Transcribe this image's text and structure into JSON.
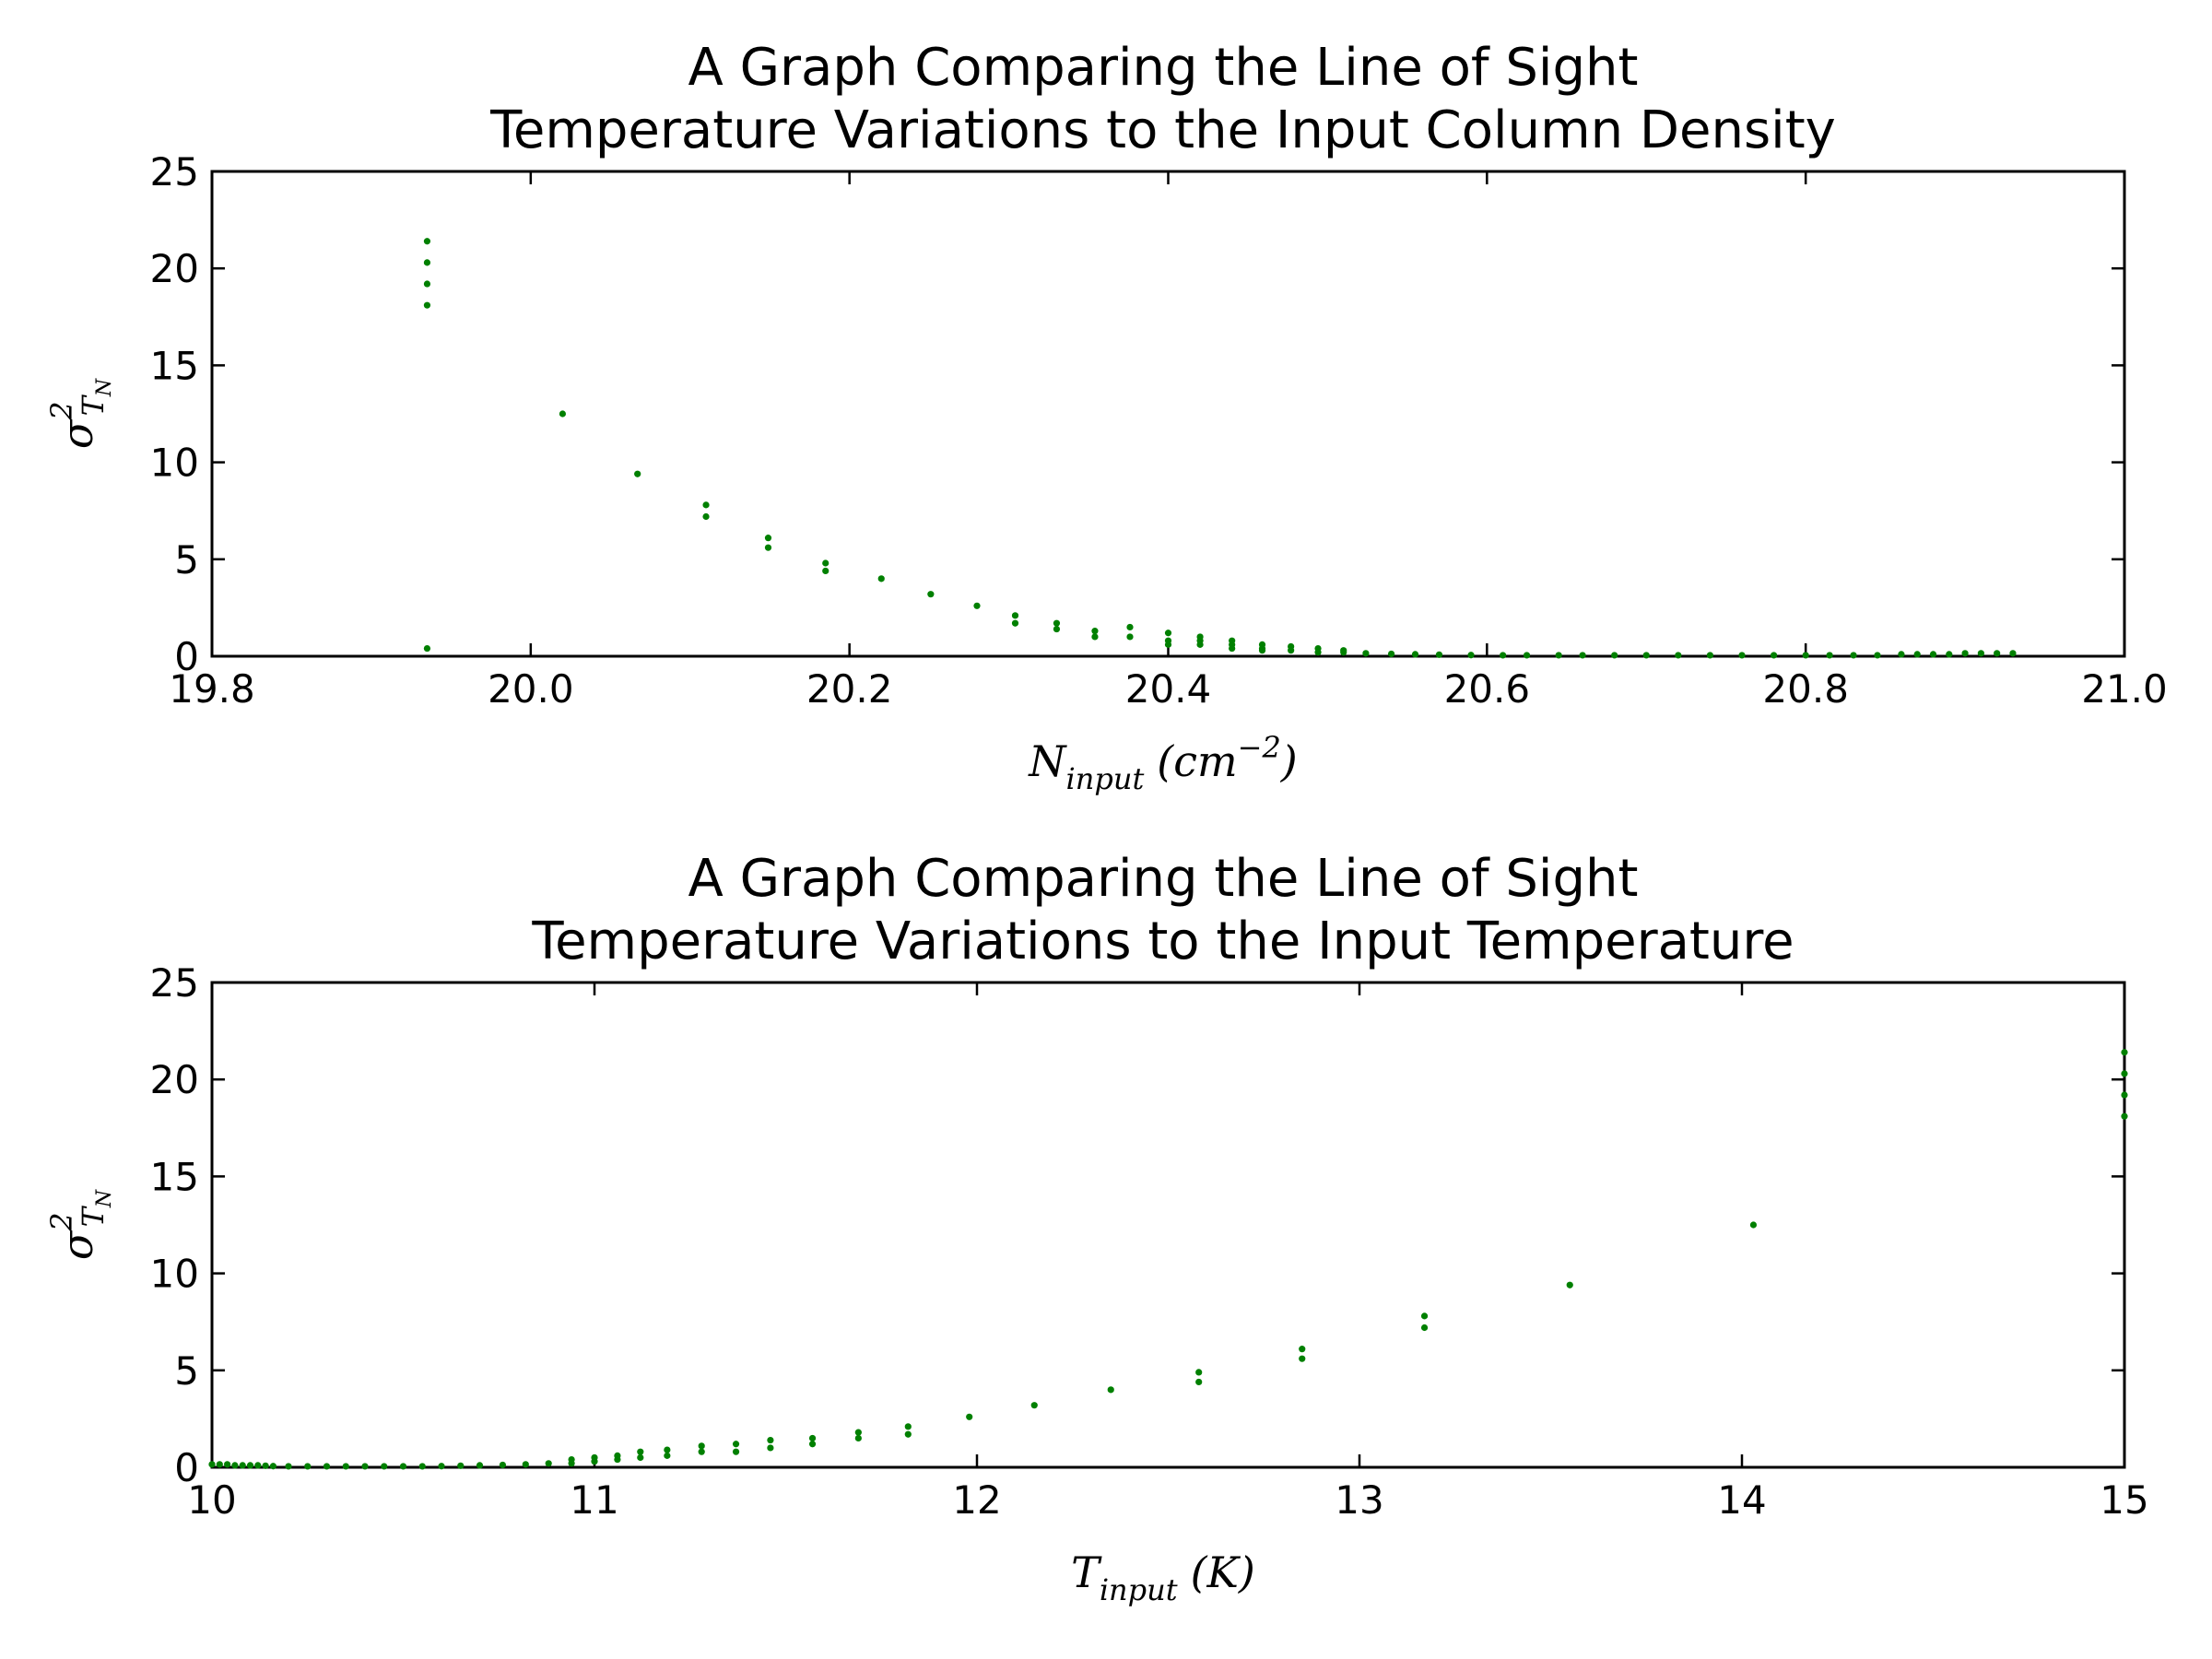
{
  "chart_data": [
    {
      "type": "scatter",
      "title_lines": [
        "A Graph Comparing the Line of Sight",
        "Temperature Variations to the Input Column Density"
      ],
      "xlabel": {
        "symbol": "N",
        "sub": "input",
        "unit_open": "(cm",
        "unit_sup": "−2",
        "unit_close": ")"
      },
      "ylabel": {
        "symbol": "σ",
        "sup": "2",
        "sub": "T",
        "subsub": "N"
      },
      "xlim": [
        19.8,
        21.0
      ],
      "ylim": [
        0,
        25
      ],
      "xticks": [
        19.8,
        20.0,
        20.2,
        20.4,
        20.6,
        20.8,
        21.0
      ],
      "xtick_labels": [
        "19.8",
        "20.0",
        "20.2",
        "20.4",
        "20.6",
        "20.8",
        "21.0"
      ],
      "yticks": [
        0,
        5,
        10,
        15,
        20,
        25
      ],
      "ytick_labels": [
        "0",
        "5",
        "10",
        "15",
        "20",
        "25"
      ],
      "marker_color": "#008000",
      "points": [
        [
          19.935,
          21.4
        ],
        [
          19.935,
          20.3
        ],
        [
          19.935,
          19.2
        ],
        [
          19.935,
          18.1
        ],
        [
          19.935,
          0.4
        ],
        [
          20.02,
          12.5
        ],
        [
          20.067,
          9.4
        ],
        [
          20.11,
          7.8
        ],
        [
          20.11,
          7.2
        ],
        [
          20.149,
          6.1
        ],
        [
          20.149,
          5.6
        ],
        [
          20.185,
          4.8
        ],
        [
          20.185,
          4.4
        ],
        [
          20.22,
          4.0
        ],
        [
          20.251,
          3.2
        ],
        [
          20.28,
          2.6
        ],
        [
          20.304,
          2.1
        ],
        [
          20.304,
          1.7
        ],
        [
          20.33,
          1.7
        ],
        [
          20.33,
          1.4
        ],
        [
          20.354,
          1.3
        ],
        [
          20.354,
          1.0
        ],
        [
          20.376,
          1.5
        ],
        [
          20.376,
          1.0
        ],
        [
          20.4,
          1.2
        ],
        [
          20.4,
          0.8
        ],
        [
          20.4,
          0.6
        ],
        [
          20.42,
          1.0
        ],
        [
          20.42,
          0.8
        ],
        [
          20.42,
          0.6
        ],
        [
          20.44,
          0.8
        ],
        [
          20.44,
          0.6
        ],
        [
          20.44,
          0.4
        ],
        [
          20.459,
          0.6
        ],
        [
          20.459,
          0.4
        ],
        [
          20.459,
          0.3
        ],
        [
          20.477,
          0.5
        ],
        [
          20.477,
          0.3
        ],
        [
          20.494,
          0.4
        ],
        [
          20.494,
          0.2
        ],
        [
          20.51,
          0.3
        ],
        [
          20.51,
          0.2
        ],
        [
          20.524,
          0.15
        ],
        [
          20.54,
          0.12
        ],
        [
          20.555,
          0.1
        ],
        [
          20.57,
          0.08
        ],
        [
          20.59,
          0.06
        ],
        [
          20.61,
          0.05
        ],
        [
          20.625,
          0.05
        ],
        [
          20.645,
          0.05
        ],
        [
          20.66,
          0.05
        ],
        [
          20.68,
          0.05
        ],
        [
          20.7,
          0.05
        ],
        [
          20.72,
          0.05
        ],
        [
          20.74,
          0.05
        ],
        [
          20.76,
          0.05
        ],
        [
          20.78,
          0.05
        ],
        [
          20.8,
          0.05
        ],
        [
          20.815,
          0.05
        ],
        [
          20.83,
          0.05
        ],
        [
          20.845,
          0.05
        ],
        [
          20.86,
          0.1
        ],
        [
          20.87,
          0.1
        ],
        [
          20.88,
          0.1
        ],
        [
          20.89,
          0.1
        ],
        [
          20.9,
          0.15
        ],
        [
          20.91,
          0.15
        ],
        [
          20.92,
          0.15
        ],
        [
          20.93,
          0.15
        ]
      ]
    },
    {
      "type": "scatter",
      "title_lines": [
        "A Graph Comparing the Line of Sight",
        "Temperature Variations to the Input Temperature"
      ],
      "xlabel": {
        "symbol": "T",
        "sub": "input",
        "unit_open": "(K)",
        "unit_sup": "",
        "unit_close": ""
      },
      "ylabel": {
        "symbol": "σ",
        "sup": "2",
        "sub": "T",
        "subsub": "N"
      },
      "xlim": [
        10,
        15
      ],
      "ylim": [
        0,
        25
      ],
      "xticks": [
        10,
        11,
        12,
        13,
        14,
        15
      ],
      "xtick_labels": [
        "10",
        "11",
        "12",
        "13",
        "14",
        "15"
      ],
      "yticks": [
        0,
        5,
        10,
        15,
        20,
        25
      ],
      "ytick_labels": [
        "0",
        "5",
        "10",
        "15",
        "20",
        "25"
      ],
      "marker_color": "#008000",
      "points": [
        [
          10.0,
          0.15
        ],
        [
          10.02,
          0.15
        ],
        [
          10.04,
          0.15
        ],
        [
          10.06,
          0.1
        ],
        [
          10.08,
          0.1
        ],
        [
          10.1,
          0.1
        ],
        [
          10.12,
          0.1
        ],
        [
          10.14,
          0.08
        ],
        [
          10.16,
          0.06
        ],
        [
          10.2,
          0.05
        ],
        [
          10.25,
          0.05
        ],
        [
          10.3,
          0.05
        ],
        [
          10.35,
          0.05
        ],
        [
          10.4,
          0.05
        ],
        [
          10.45,
          0.05
        ],
        [
          10.5,
          0.05
        ],
        [
          10.55,
          0.05
        ],
        [
          10.6,
          0.06
        ],
        [
          10.65,
          0.08
        ],
        [
          10.7,
          0.1
        ],
        [
          10.76,
          0.12
        ],
        [
          10.82,
          0.15
        ],
        [
          10.88,
          0.2
        ],
        [
          10.94,
          0.4
        ],
        [
          10.94,
          0.2
        ],
        [
          11.0,
          0.5
        ],
        [
          11.0,
          0.3
        ],
        [
          11.06,
          0.6
        ],
        [
          11.06,
          0.4
        ],
        [
          11.12,
          0.8
        ],
        [
          11.12,
          0.5
        ],
        [
          11.19,
          0.9
        ],
        [
          11.19,
          0.6
        ],
        [
          11.28,
          1.1
        ],
        [
          11.28,
          0.8
        ],
        [
          11.37,
          1.2
        ],
        [
          11.37,
          0.8
        ],
        [
          11.46,
          1.4
        ],
        [
          11.46,
          1.0
        ],
        [
          11.57,
          1.5
        ],
        [
          11.57,
          1.2
        ],
        [
          11.69,
          1.8
        ],
        [
          11.69,
          1.5
        ],
        [
          11.82,
          2.1
        ],
        [
          11.82,
          1.7
        ],
        [
          11.98,
          2.6
        ],
        [
          12.15,
          3.2
        ],
        [
          12.35,
          4.0
        ],
        [
          12.58,
          4.9
        ],
        [
          12.58,
          4.4
        ],
        [
          12.85,
          6.1
        ],
        [
          12.85,
          5.6
        ],
        [
          13.17,
          7.8
        ],
        [
          13.17,
          7.2
        ],
        [
          13.55,
          9.4
        ],
        [
          14.03,
          12.5
        ],
        [
          15.0,
          21.4
        ],
        [
          15.0,
          20.3
        ],
        [
          15.0,
          19.2
        ],
        [
          15.0,
          18.1
        ]
      ]
    }
  ]
}
